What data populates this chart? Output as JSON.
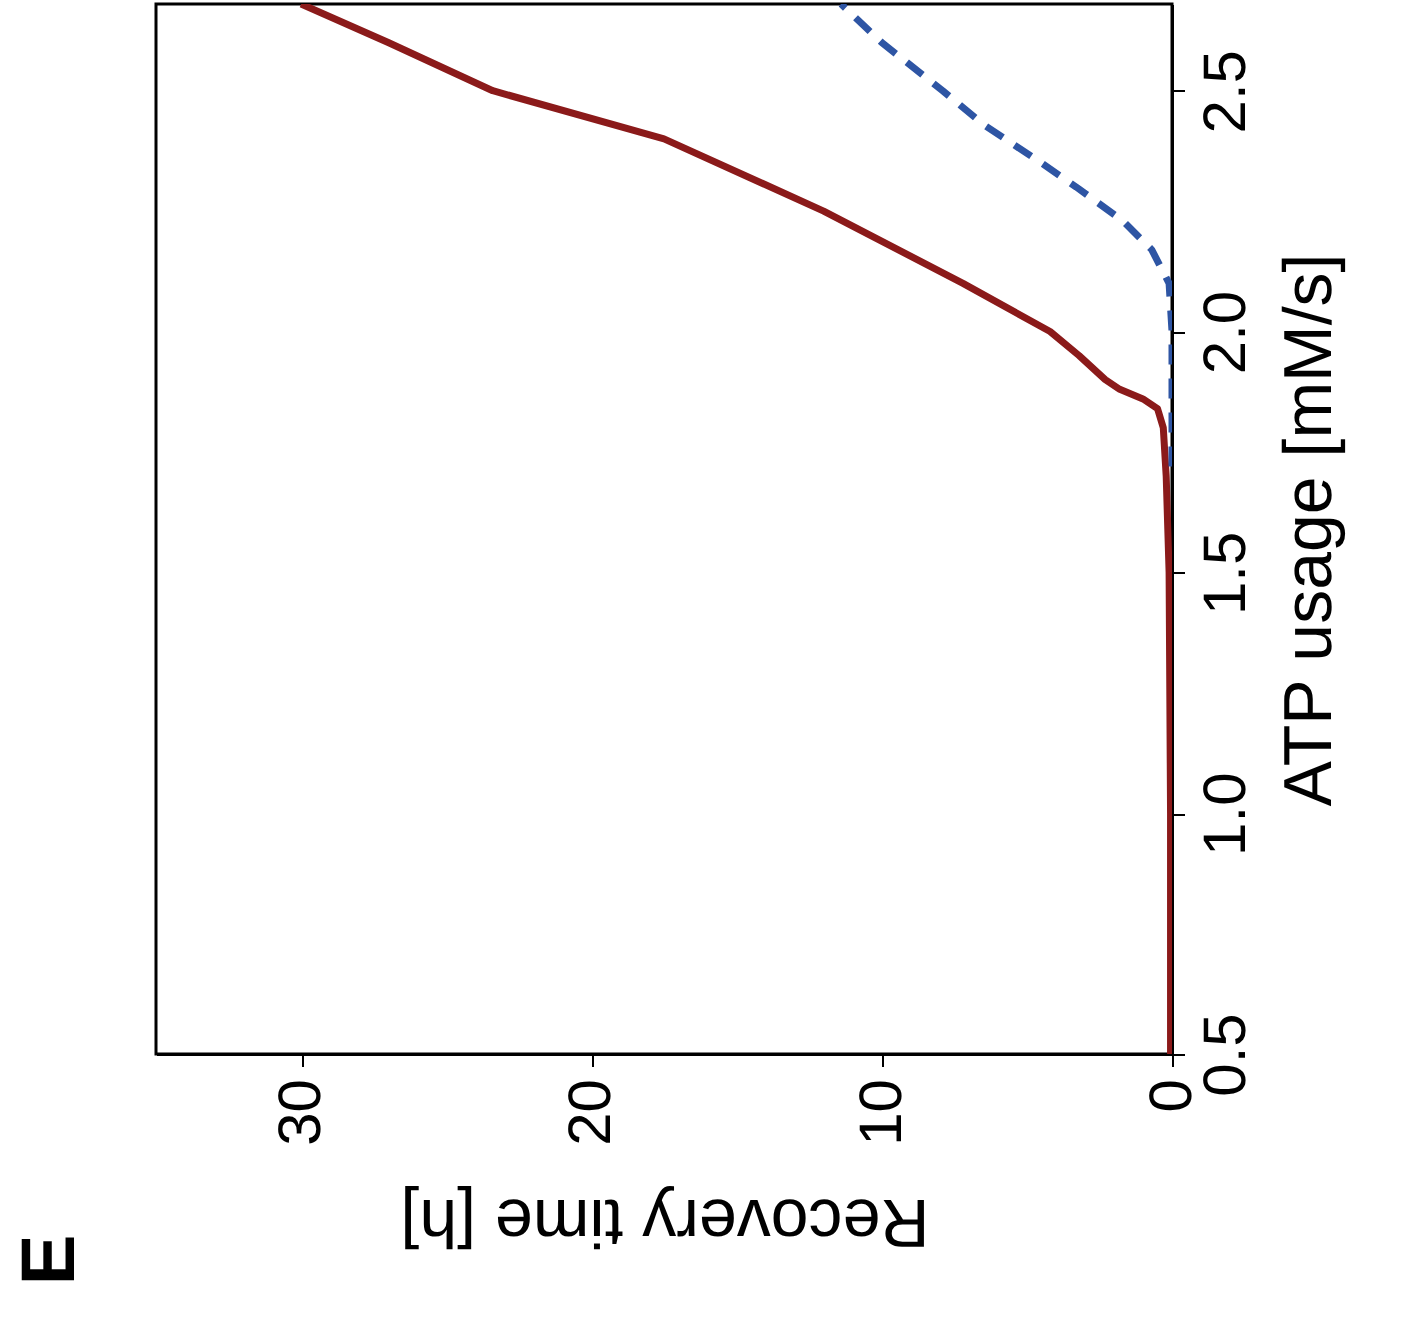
{
  "chart_data": {
    "type": "line",
    "xlabel": "Recovery time [h]",
    "ylabel": "ATP usage [mM/s]",
    "xlim": [
      35,
      0
    ],
    "ylim": [
      0.5,
      2.68
    ],
    "xticks": [
      0,
      10,
      20,
      30
    ],
    "yticks": [
      0.5,
      {
        "value": 1.0,
        "label": "1.0"
      },
      1.5,
      {
        "value": 2.0,
        "label": "2.0"
      },
      2.5
    ],
    "grid": false,
    "annotations": [
      "E"
    ],
    "series": [
      {
        "color": "#8b1a1a",
        "line_style": "solid",
        "values": [
          0.5,
          1.0,
          1.5,
          1.7,
          1.8,
          1.84,
          1.86,
          1.88,
          1.9,
          1.95,
          2.0,
          2.1,
          2.25,
          2.4,
          2.5,
          2.6,
          2.68
        ],
        "x": [
          0.05,
          0.05,
          0.1,
          0.2,
          0.3,
          0.5,
          1.0,
          1.8,
          2.3,
          3.2,
          4.2,
          7.2,
          12,
          17.5,
          23.4,
          27,
          30
        ]
      },
      {
        "color": "#2e55a4",
        "line_style": "dashed",
        "values": [
          1.72,
          1.8,
          1.9,
          2.0,
          2.1,
          2.17,
          2.23,
          2.3,
          2.35,
          2.43,
          2.5,
          2.6,
          2.68
        ],
        "x": [
          0,
          0,
          0,
          0,
          0.1,
          0.7,
          1.7,
          3.3,
          4.5,
          6.5,
          7.9,
          10,
          11.4
        ]
      }
    ]
  }
}
